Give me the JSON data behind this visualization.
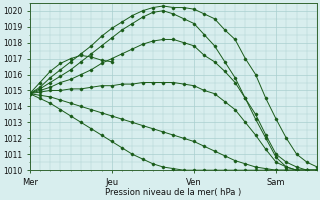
{
  "xlabel": "Pression niveau de la mer( hPa )",
  "ylim": [
    1010,
    1020.5
  ],
  "yticks": [
    1010,
    1011,
    1012,
    1013,
    1014,
    1015,
    1016,
    1017,
    1018,
    1019,
    1020
  ],
  "xtick_labels": [
    "Mer",
    "Jeu",
    "Ven",
    "Sam"
  ],
  "xtick_positions": [
    0,
    48,
    96,
    144
  ],
  "xlim": [
    0,
    168
  ],
  "background_color": "#d8eeee",
  "grid_color": "#aacfcf",
  "line_color": "#1a5c1a",
  "lines": [
    {
      "x": [
        0,
        6,
        12,
        18,
        24,
        30,
        36,
        42,
        48,
        54,
        60,
        66,
        72,
        78,
        84,
        90,
        96,
        102,
        108,
        114,
        120,
        126,
        132,
        138,
        144,
        150,
        156,
        162,
        168
      ],
      "y": [
        1014.8,
        1015.2,
        1015.8,
        1016.3,
        1016.8,
        1017.3,
        1017.8,
        1018.4,
        1018.9,
        1019.3,
        1019.7,
        1020.0,
        1020.2,
        1020.3,
        1020.2,
        1020.2,
        1020.1,
        1019.8,
        1019.5,
        1018.8,
        1018.2,
        1017.0,
        1016.0,
        1014.5,
        1013.2,
        1012.0,
        1011.0,
        1010.5,
        1010.2
      ]
    },
    {
      "x": [
        0,
        6,
        12,
        18,
        24,
        30,
        36,
        42,
        48,
        54,
        60,
        66,
        72,
        78,
        84,
        90,
        96,
        102,
        108,
        114,
        120,
        126,
        132,
        138,
        144,
        150,
        156,
        162,
        168
      ],
      "y": [
        1014.8,
        1015.1,
        1015.5,
        1015.9,
        1016.3,
        1016.8,
        1017.3,
        1017.8,
        1018.3,
        1018.8,
        1019.2,
        1019.6,
        1019.9,
        1020.0,
        1019.8,
        1019.5,
        1019.2,
        1018.5,
        1017.8,
        1016.8,
        1015.8,
        1014.5,
        1013.2,
        1012.0,
        1010.8,
        1010.2,
        1010.0,
        1010.0,
        1010.0
      ]
    },
    {
      "x": [
        0,
        6,
        12,
        18,
        24,
        30,
        36,
        42,
        48,
        54,
        60,
        66,
        72,
        78,
        84,
        90,
        96,
        102,
        108,
        114,
        120,
        126,
        132,
        138,
        144,
        150,
        156,
        162,
        168
      ],
      "y": [
        1014.8,
        1015.0,
        1015.2,
        1015.5,
        1015.7,
        1016.0,
        1016.3,
        1016.7,
        1017.0,
        1017.3,
        1017.6,
        1017.9,
        1018.1,
        1018.2,
        1018.2,
        1018.0,
        1017.8,
        1017.2,
        1016.8,
        1016.2,
        1015.5,
        1014.5,
        1013.5,
        1012.2,
        1011.0,
        1010.5,
        1010.2,
        1010.0,
        1010.0
      ]
    },
    {
      "x": [
        0,
        6,
        12,
        18,
        24,
        30,
        36,
        42,
        48,
        54,
        60,
        66,
        72,
        78,
        84,
        90,
        96,
        102,
        108,
        114,
        120,
        126,
        132,
        138,
        144,
        150,
        156,
        162,
        168
      ],
      "y": [
        1014.8,
        1014.9,
        1015.0,
        1015.0,
        1015.1,
        1015.1,
        1015.2,
        1015.3,
        1015.3,
        1015.4,
        1015.4,
        1015.5,
        1015.5,
        1015.5,
        1015.5,
        1015.4,
        1015.3,
        1015.0,
        1014.8,
        1014.3,
        1013.8,
        1013.0,
        1012.2,
        1011.3,
        1010.5,
        1010.2,
        1010.0,
        1010.0,
        1010.0
      ]
    },
    {
      "x": [
        0,
        6,
        12,
        18,
        24,
        30,
        36,
        42,
        48,
        54,
        60,
        66,
        72,
        78,
        84,
        90,
        96,
        102,
        108,
        114,
        120,
        126,
        132,
        138,
        144,
        150,
        156,
        162,
        168
      ],
      "y": [
        1014.8,
        1014.7,
        1014.6,
        1014.4,
        1014.2,
        1014.0,
        1013.8,
        1013.6,
        1013.4,
        1013.2,
        1013.0,
        1012.8,
        1012.6,
        1012.4,
        1012.2,
        1012.0,
        1011.8,
        1011.5,
        1011.2,
        1010.9,
        1010.6,
        1010.4,
        1010.2,
        1010.1,
        1010.0,
        1010.0,
        1010.0,
        1010.0,
        1010.0
      ]
    },
    {
      "x": [
        0,
        6,
        12,
        18,
        24,
        30,
        36,
        42,
        48,
        54,
        60,
        66,
        72,
        78,
        84,
        90,
        96,
        102,
        108,
        114,
        120,
        126,
        132,
        138,
        144,
        150,
        156,
        162,
        168
      ],
      "y": [
        1014.8,
        1014.5,
        1014.2,
        1013.8,
        1013.4,
        1013.0,
        1012.6,
        1012.2,
        1011.8,
        1011.4,
        1011.0,
        1010.7,
        1010.4,
        1010.2,
        1010.1,
        1010.0,
        1010.0,
        1010.0,
        1010.0,
        1010.0,
        1010.0,
        1010.0,
        1010.0,
        1010.0,
        1010.0,
        1010.0,
        1010.0,
        1010.0,
        1010.0
      ]
    },
    {
      "x": [
        0,
        6,
        12,
        18,
        24,
        30,
        36,
        42,
        48
      ],
      "y": [
        1014.8,
        1015.5,
        1016.2,
        1016.7,
        1017.0,
        1017.2,
        1017.1,
        1016.9,
        1016.8
      ]
    }
  ]
}
